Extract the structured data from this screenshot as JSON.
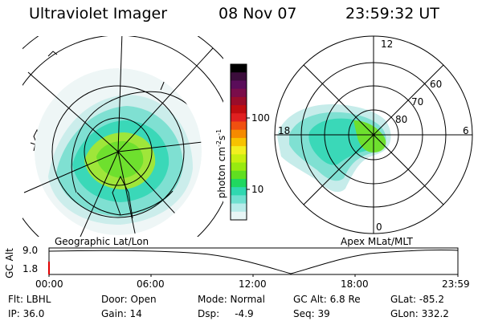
{
  "header": {
    "instrument": "Ultraviolet Imager",
    "date": "08 Nov 07",
    "time": "23:59:32 UT"
  },
  "left_map": {
    "label": "Geographic Lat/Lon"
  },
  "right_map": {
    "label": "Apex MLat/MLT",
    "mlt_labels": [
      "12",
      "18",
      "6",
      "0"
    ],
    "lat_labels": [
      "60",
      "70",
      "80"
    ]
  },
  "colorbar": {
    "unit_label": "photon cm",
    "unit_sup1": "-2",
    "unit_mid": "s",
    "unit_sup2": "-1",
    "ticks": [
      "100",
      "10"
    ],
    "colors": [
      "#000000",
      "#3b0d3b",
      "#5a0d5a",
      "#7a0d4a",
      "#9a0d2a",
      "#c00d10",
      "#e02020",
      "#f05010",
      "#f58a00",
      "#f7c200",
      "#f2ef20",
      "#c8ef10",
      "#98ea10",
      "#60df20",
      "#20d860",
      "#30d8b0",
      "#70e0d0",
      "#b8ecea",
      "#e8f6f6"
    ]
  },
  "timeline": {
    "axis_label": "GC Alt",
    "y_ticks": [
      "9.0",
      "1.8"
    ],
    "x_ticks": [
      "00:00",
      "06:00",
      "12:00",
      "18:00",
      "23:59"
    ]
  },
  "status": {
    "flt": "Flt: LBHL",
    "ip": "IP: 36.0",
    "door": "Door: Open",
    "gain": "Gain: 14",
    "mode": "Mode: Normal",
    "dsp": "Dsp:     -4.9",
    "gc_alt": "GC Alt: 6.8 Re",
    "seq": "Seq: 39",
    "glat": "GLat: -85.2",
    "glon": "GLon: 332.2"
  }
}
